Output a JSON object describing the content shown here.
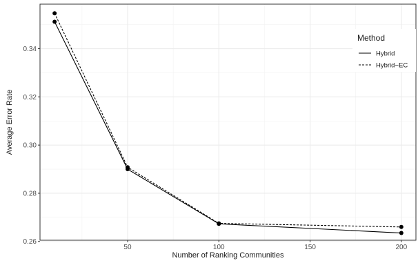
{
  "chart_data": {
    "type": "line",
    "xlabel": "Number of Ranking Communities",
    "ylabel": "Average Error Rate",
    "xlim": [
      2,
      208
    ],
    "ylim": [
      0.2605,
      0.3585
    ],
    "x_ticks": [
      50,
      100,
      150,
      200
    ],
    "y_ticks": [
      0.26,
      0.28,
      0.3,
      0.32,
      0.34
    ],
    "x_tick_labels": [
      "50",
      "100",
      "150",
      "200"
    ],
    "y_tick_labels": [
      "0.26",
      "0.28",
      "0.30",
      "0.32",
      "0.34"
    ],
    "grid": true,
    "legend": {
      "title": "Method",
      "position": "top-right"
    },
    "series": [
      {
        "name": "Hybrid",
        "line_style": "solid",
        "x": [
          10,
          50,
          100,
          200
        ],
        "y": [
          0.3512,
          0.29,
          0.2673,
          0.2635
        ]
      },
      {
        "name": "Hybrid−EC",
        "line_style": "dashed",
        "x": [
          10,
          50,
          100,
          200
        ],
        "y": [
          0.3547,
          0.2908,
          0.2675,
          0.266
        ]
      }
    ]
  }
}
